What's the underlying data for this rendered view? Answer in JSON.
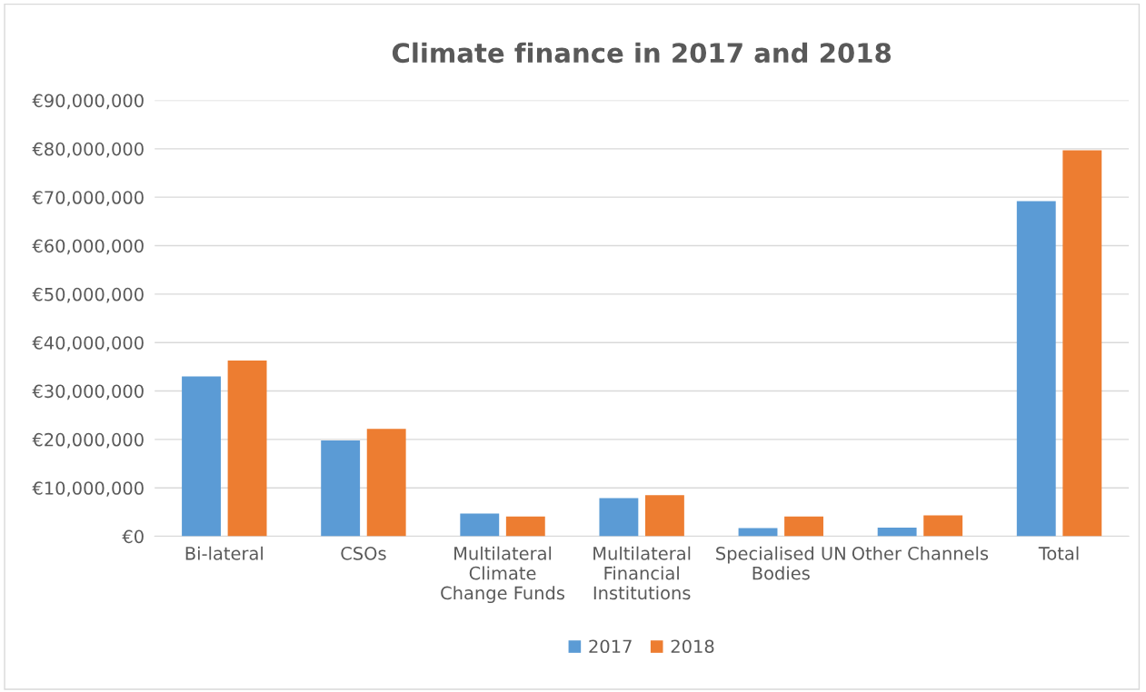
{
  "chart_data": {
    "type": "bar",
    "title": "Climate finance in 2017 and 2018",
    "categories": [
      "Bi-lateral",
      "CSOs",
      "Multilateral\nClimate\nChange Funds",
      "Multilateral\nFinancial\nInstitutions",
      "Specialised UN\nBodies",
      "Other Channels",
      "Total"
    ],
    "series": [
      {
        "name": "2017",
        "color": "#5b9bd5",
        "values": [
          33000000,
          19800000,
          4700000,
          7900000,
          1700000,
          1800000,
          69200000
        ]
      },
      {
        "name": "2018",
        "color": "#ed7d31",
        "values": [
          36300000,
          22200000,
          4100000,
          8500000,
          4100000,
          4300000,
          79700000
        ]
      }
    ],
    "ylim": [
      0,
      90000000
    ],
    "yticks": [
      {
        "value": 0,
        "label": "€0"
      },
      {
        "value": 10000000,
        "label": "€10,000,000"
      },
      {
        "value": 20000000,
        "label": "€20,000,000"
      },
      {
        "value": 30000000,
        "label": "€30,000,000"
      },
      {
        "value": 40000000,
        "label": "€40,000,000"
      },
      {
        "value": 50000000,
        "label": "€50,000,000"
      },
      {
        "value": 60000000,
        "label": "€60,000,000"
      },
      {
        "value": 70000000,
        "label": "€70,000,000"
      },
      {
        "value": 80000000,
        "label": "€80,000,000"
      },
      {
        "value": 90000000,
        "label": "€90,000,000"
      }
    ],
    "grid": "y",
    "legend": "bottom"
  }
}
